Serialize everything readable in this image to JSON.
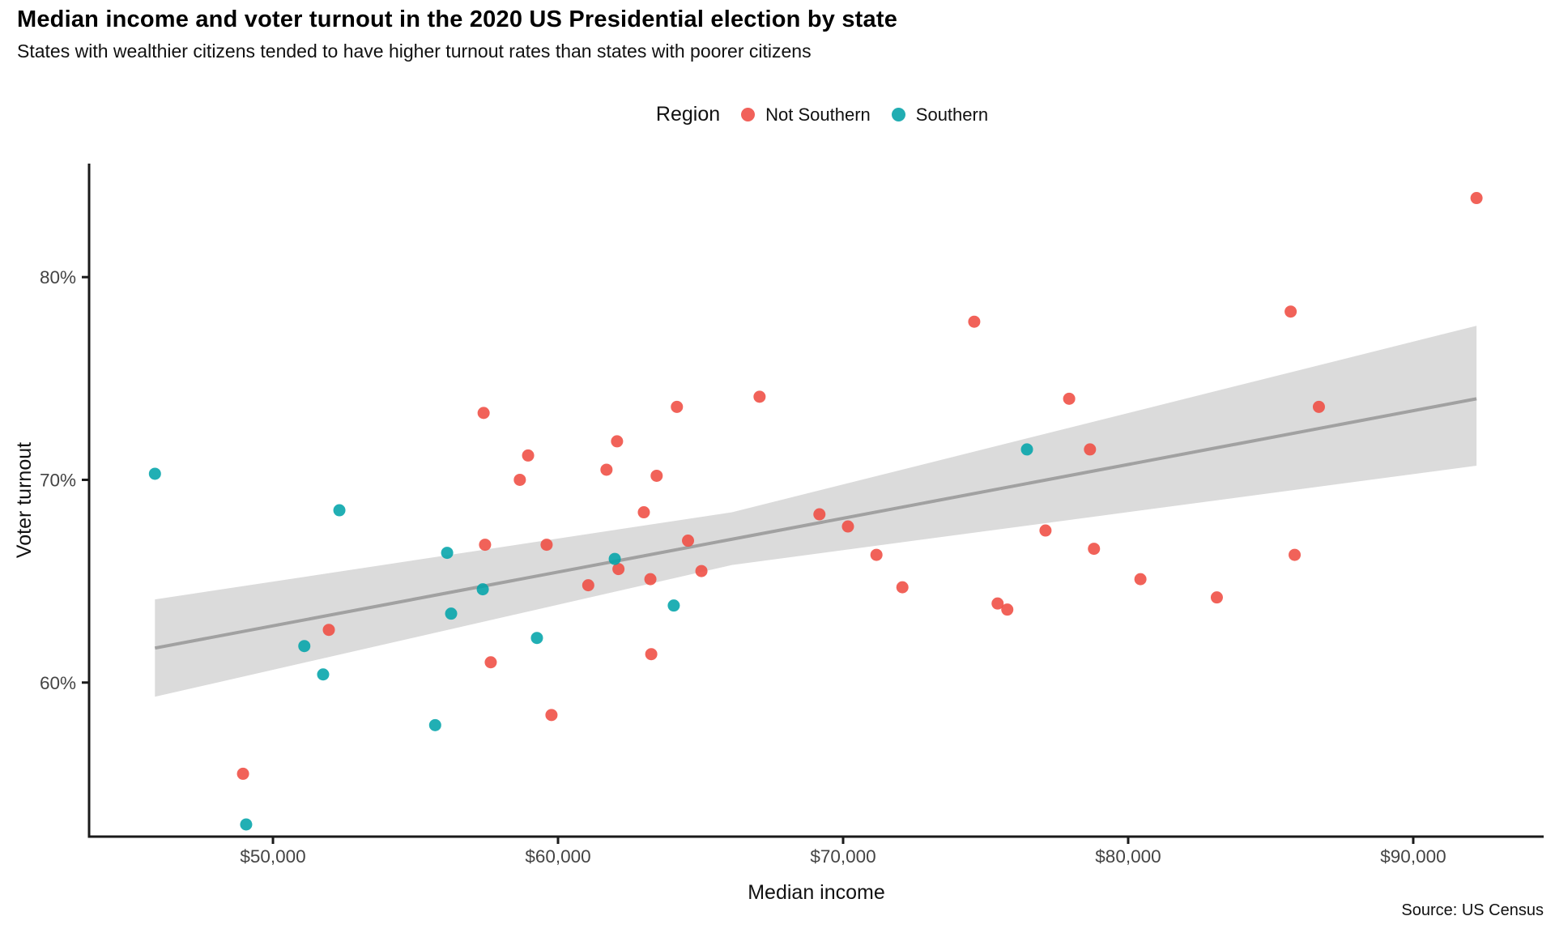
{
  "header": {
    "title": "Median income and voter turnout in the 2020 US Presidential election by state",
    "subtitle": "States with wealthier citizens tended to have higher turnout rates than states with poorer citizens"
  },
  "source": "Source: US Census",
  "chart_data": {
    "type": "scatter",
    "title": "Median income and voter turnout in the 2020 US Presidential election by state",
    "subtitle": "States with wealthier citizens tended to have higher turnout rates than states with poorer citizens",
    "xlabel": "Median income",
    "ylabel": "Voter turnout",
    "legend_title": "Region",
    "legend_position": "top-center",
    "grid": false,
    "point_opacity": 0.87,
    "point_radius": 7.5,
    "axis_color": "#1a1a1a",
    "tick_label_color": "#444444",
    "x_domain": [
      43550,
      94575
    ],
    "y_domain": [
      52.4,
      85.6
    ],
    "x_ticks": [
      {
        "value": 50000,
        "label": "$50,000"
      },
      {
        "value": 60000,
        "label": "$60,000"
      },
      {
        "value": 70000,
        "label": "$70,000"
      },
      {
        "value": 80000,
        "label": "$80,000"
      },
      {
        "value": 90000,
        "label": "$90,000"
      }
    ],
    "y_ticks": [
      {
        "value": 80,
        "label": "80%"
      },
      {
        "value": 70,
        "label": "70%"
      },
      {
        "value": 60,
        "label": "60%"
      }
    ],
    "series": [
      {
        "name": "Not Southern",
        "color": "#ef4b40",
        "legend_color": "#f1615a",
        "points": [
          [
            57390,
            73.3
          ],
          [
            58950,
            71.2
          ],
          [
            58660,
            70.0
          ],
          [
            57440,
            66.8
          ],
          [
            59600,
            66.8
          ],
          [
            51960,
            62.6
          ],
          [
            57640,
            61.0
          ],
          [
            48950,
            55.5
          ],
          [
            59770,
            58.4
          ],
          [
            67070,
            74.1
          ],
          [
            64170,
            73.6
          ],
          [
            62070,
            71.9
          ],
          [
            61700,
            70.5
          ],
          [
            63460,
            70.2
          ],
          [
            63010,
            68.4
          ],
          [
            64560,
            67.0
          ],
          [
            69170,
            68.3
          ],
          [
            70170,
            67.7
          ],
          [
            71170,
            66.3
          ],
          [
            62120,
            65.6
          ],
          [
            63240,
            65.1
          ],
          [
            65030,
            65.5
          ],
          [
            61060,
            64.8
          ],
          [
            63270,
            61.4
          ],
          [
            72080,
            64.7
          ],
          [
            74600,
            77.8
          ],
          [
            77930,
            74.0
          ],
          [
            78660,
            71.5
          ],
          [
            77100,
            67.5
          ],
          [
            78800,
            66.6
          ],
          [
            80430,
            65.1
          ],
          [
            75420,
            63.9
          ],
          [
            75760,
            63.6
          ],
          [
            83110,
            64.2
          ],
          [
            85840,
            66.3
          ],
          [
            92220,
            83.9
          ],
          [
            85700,
            78.3
          ],
          [
            86690,
            73.6
          ]
        ]
      },
      {
        "name": "Southern",
        "color": "#00a3a9",
        "legend_color": "#21adb2",
        "points": [
          [
            45860,
            70.3
          ],
          [
            52330,
            68.5
          ],
          [
            56110,
            66.4
          ],
          [
            57360,
            64.6
          ],
          [
            56250,
            63.4
          ],
          [
            51100,
            61.8
          ],
          [
            51760,
            60.4
          ],
          [
            59260,
            62.2
          ],
          [
            49060,
            53.0
          ],
          [
            55690,
            57.9
          ],
          [
            61990,
            66.1
          ],
          [
            64060,
            63.8
          ],
          [
            76450,
            71.5
          ]
        ]
      }
    ],
    "trend": {
      "type": "linear",
      "line_color": "#a1a1a1",
      "line_width": 4,
      "band_color": "#dbdbdb",
      "start": [
        45860,
        61.7
      ],
      "end": [
        92220,
        74.0
      ],
      "band": [
        {
          "x": 45860,
          "upper": 64.1,
          "lower": 59.3
        },
        {
          "x": 66100,
          "upper": 68.4,
          "lower": 65.8
        },
        {
          "x": 92220,
          "upper": 77.6,
          "lower": 70.7
        }
      ]
    }
  },
  "legend": {
    "title": "Region",
    "items": [
      {
        "label": "Not Southern"
      },
      {
        "label": "Southern"
      }
    ]
  }
}
